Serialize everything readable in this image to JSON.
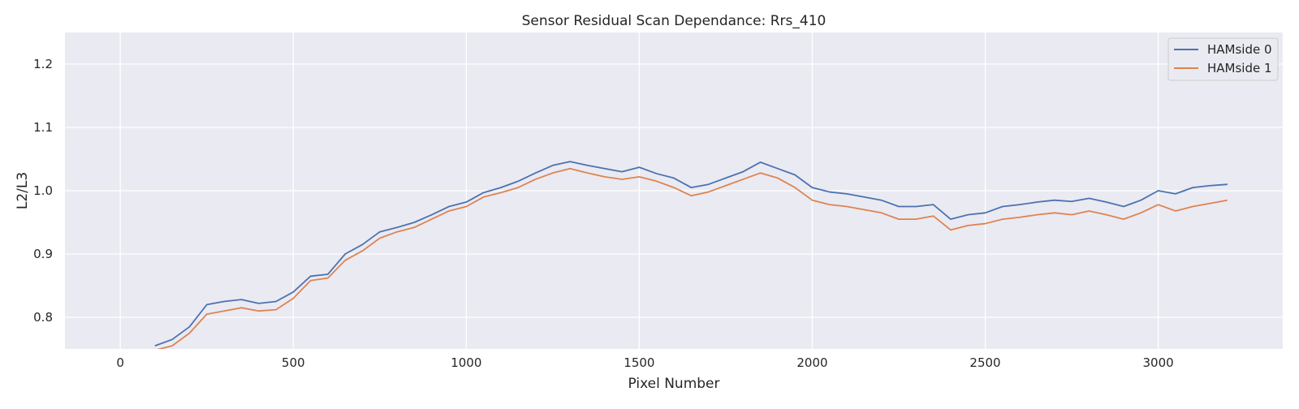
{
  "chart_data": {
    "type": "line",
    "title": "Sensor Residual Scan Dependance: Rrs_410",
    "xlabel": "Pixel Number",
    "ylabel": "L2/L3",
    "xlim": [
      -160,
      3360
    ],
    "ylim": [
      0.75,
      1.25
    ],
    "xticks": [
      0,
      500,
      1000,
      1500,
      2000,
      2500,
      3000
    ],
    "xtick_labels": [
      "0",
      "500",
      "1000",
      "1500",
      "2000",
      "2500",
      "3000"
    ],
    "yticks": [
      0.8,
      0.9,
      1.0,
      1.1,
      1.2
    ],
    "ytick_labels": [
      "0.8",
      "0.9",
      "1.0",
      "1.1",
      "1.2"
    ],
    "grid": true,
    "legend_position": "top-right",
    "background_color": "#EAEAF2",
    "series": [
      {
        "name": "HAMside 0",
        "color": "#4C72B0",
        "x": [
          100,
          150,
          200,
          250,
          300,
          350,
          400,
          450,
          500,
          550,
          600,
          650,
          700,
          750,
          800,
          850,
          900,
          950,
          1000,
          1050,
          1100,
          1150,
          1200,
          1250,
          1300,
          1350,
          1400,
          1450,
          1500,
          1550,
          1600,
          1650,
          1700,
          1750,
          1800,
          1850,
          1900,
          1950,
          2000,
          2050,
          2100,
          2150,
          2200,
          2250,
          2300,
          2350,
          2400,
          2450,
          2500,
          2550,
          2600,
          2650,
          2700,
          2750,
          2800,
          2850,
          2900,
          2950,
          3000,
          3050,
          3100,
          3150,
          3200
        ],
        "y": [
          0.755,
          0.765,
          0.785,
          0.82,
          0.825,
          0.828,
          0.822,
          0.825,
          0.84,
          0.865,
          0.868,
          0.9,
          0.915,
          0.935,
          0.942,
          0.95,
          0.962,
          0.975,
          0.982,
          0.997,
          1.005,
          1.015,
          1.028,
          1.04,
          1.046,
          1.04,
          1.035,
          1.03,
          1.037,
          1.027,
          1.02,
          1.005,
          1.01,
          1.02,
          1.03,
          1.045,
          1.035,
          1.025,
          1.005,
          0.998,
          0.995,
          0.99,
          0.985,
          0.975,
          0.975,
          0.978,
          0.955,
          0.962,
          0.965,
          0.975,
          0.978,
          0.982,
          0.985,
          0.983,
          0.988,
          0.982,
          0.975,
          0.985,
          1.0,
          0.995,
          1.005,
          1.008,
          1.01
        ]
      },
      {
        "name": "HAMside 1",
        "color": "#DD8452",
        "x": [
          100,
          150,
          200,
          250,
          300,
          350,
          400,
          450,
          500,
          550,
          600,
          650,
          700,
          750,
          800,
          850,
          900,
          950,
          1000,
          1050,
          1100,
          1150,
          1200,
          1250,
          1300,
          1350,
          1400,
          1450,
          1500,
          1550,
          1600,
          1650,
          1700,
          1750,
          1800,
          1850,
          1900,
          1950,
          2000,
          2050,
          2100,
          2150,
          2200,
          2250,
          2300,
          2350,
          2400,
          2450,
          2500,
          2550,
          2600,
          2650,
          2700,
          2750,
          2800,
          2850,
          2900,
          2950,
          3000,
          3050,
          3100,
          3150,
          3200
        ],
        "y": [
          0.748,
          0.755,
          0.775,
          0.805,
          0.81,
          0.815,
          0.81,
          0.812,
          0.83,
          0.858,
          0.862,
          0.89,
          0.905,
          0.925,
          0.935,
          0.942,
          0.955,
          0.968,
          0.975,
          0.99,
          0.997,
          1.005,
          1.018,
          1.028,
          1.035,
          1.028,
          1.022,
          1.018,
          1.022,
          1.015,
          1.005,
          0.992,
          0.998,
          1.008,
          1.018,
          1.028,
          1.02,
          1.005,
          0.985,
          0.978,
          0.975,
          0.97,
          0.965,
          0.955,
          0.955,
          0.96,
          0.938,
          0.945,
          0.948,
          0.955,
          0.958,
          0.962,
          0.965,
          0.962,
          0.968,
          0.962,
          0.955,
          0.965,
          0.978,
          0.968,
          0.975,
          0.98,
          0.985
        ]
      }
    ]
  }
}
